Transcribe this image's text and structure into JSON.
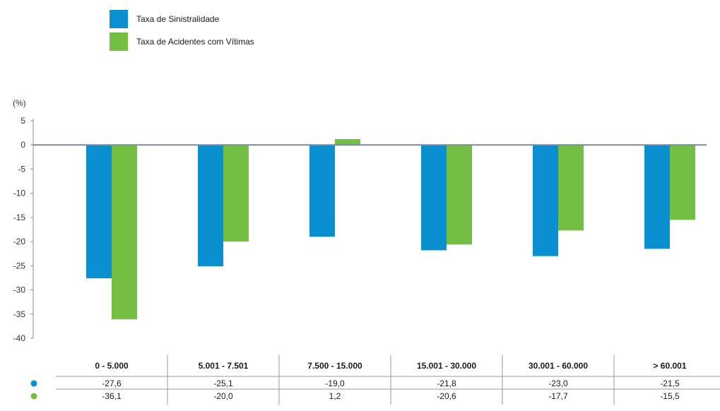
{
  "chart_data": {
    "type": "bar",
    "ylabel": "(%)",
    "ylim": [
      -40,
      5
    ],
    "yticks": [
      5,
      0,
      -5,
      -10,
      -15,
      -20,
      -25,
      -30,
      -35,
      -40
    ],
    "grid": false,
    "legend_position": "top-left",
    "categories": [
      "0 - 5.000",
      "5.001 - 7.501",
      "7.500 - 15.000",
      "15.001 - 30.000",
      "30.001 - 60.000",
      "> 60.001"
    ],
    "series": [
      {
        "name": "Taxa de Sinistralidade",
        "color": "#0a8fd1",
        "values": [
          -27.6,
          -25.1,
          -19.0,
          -21.8,
          -23.0,
          -21.5
        ],
        "labels": [
          "-27,6",
          "-25,1",
          "-19,0",
          "-21,8",
          "-23,0",
          "-21,5"
        ]
      },
      {
        "name": "Taxa de Acidentes com Vítimas",
        "color": "#72bf44",
        "values": [
          -36.1,
          -20.0,
          1.2,
          -20.6,
          -17.7,
          -15.5
        ],
        "labels": [
          "-36,1",
          "-20,0",
          "1,2",
          "-20,6",
          "-17,7",
          "-15,5"
        ]
      }
    ]
  }
}
